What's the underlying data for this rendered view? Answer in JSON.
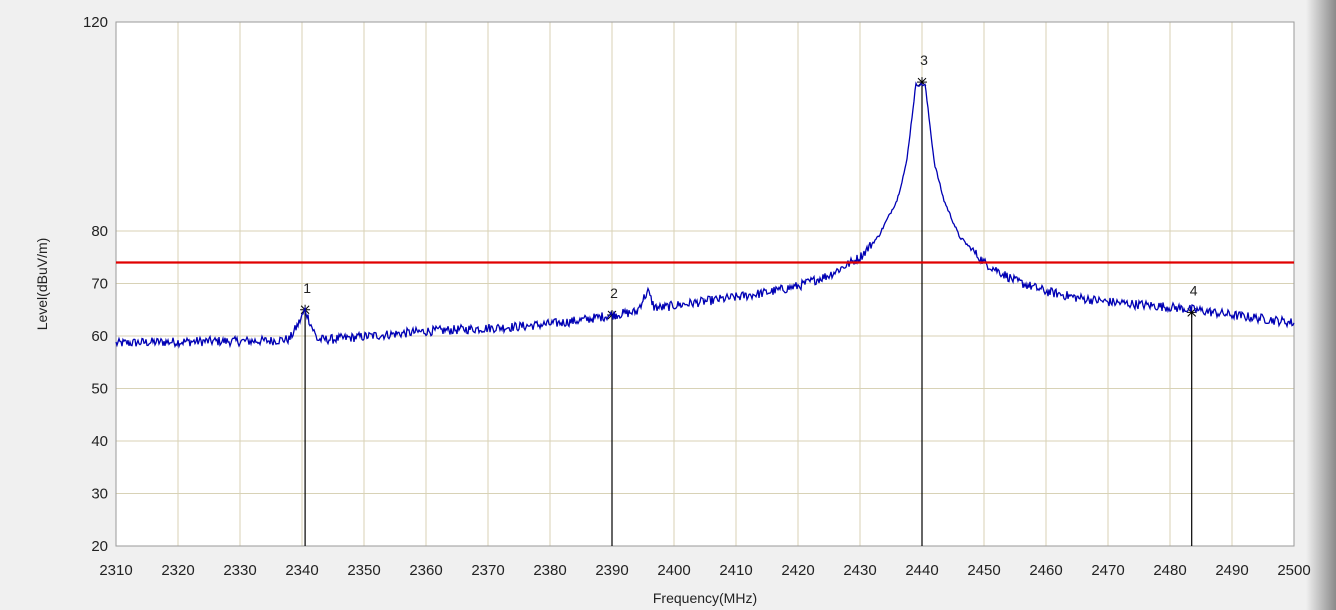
{
  "chart_data": {
    "type": "line",
    "title": "",
    "xlabel": "Frequency(MHz)",
    "ylabel": "Level(dBuV/m)",
    "xlim": [
      2310,
      2500
    ],
    "ylim": [
      20,
      120
    ],
    "grid": true,
    "x_ticks": [
      2310,
      2320,
      2330,
      2340,
      2350,
      2360,
      2370,
      2380,
      2390,
      2400,
      2410,
      2420,
      2430,
      2440,
      2450,
      2460,
      2470,
      2480,
      2490,
      2500
    ],
    "x_tick_labels": [
      "2310",
      "2320",
      "2330",
      "2340",
      "2350",
      "2360",
      "2370",
      "2380",
      "2390",
      "2400",
      "2410",
      "2420",
      "2430",
      "2440",
      "2450",
      "2460",
      "2470",
      "2480",
      "2490",
      "2500"
    ],
    "y_ticks": [
      20,
      30,
      40,
      50,
      60,
      70,
      80,
      120
    ],
    "y_tick_labels": [
      "20",
      "30",
      "40",
      "50",
      "60",
      "70",
      "80",
      "120"
    ],
    "limit_line": {
      "value": 74,
      "color": "#e00000"
    },
    "trace_color": "#0000b4",
    "marker_color": "#000000",
    "grid_color": "#d8d2b6",
    "series": [
      {
        "x": [
          2310,
          2315,
          2320,
          2325,
          2330,
          2335,
          2338,
          2339.5,
          2340.5,
          2341.5,
          2342.5,
          2345,
          2350,
          2355,
          2360,
          2365,
          2370,
          2375,
          2380,
          2385,
          2388,
          2390,
          2392,
          2394,
          2395,
          2395.8,
          2396.8,
          2398,
          2400,
          2405,
          2410,
          2415,
          2420,
          2425,
          2430,
          2433,
          2436,
          2437.5,
          2438.5,
          2439,
          2440.5,
          2441,
          2442,
          2443.5,
          2446,
          2450,
          2455,
          2460,
          2465,
          2470,
          2475,
          2480,
          2484,
          2490,
          2495,
          2500
        ],
        "y": [
          58.6,
          58.8,
          58.9,
          59.0,
          59.0,
          59.1,
          59.4,
          62.5,
          65.0,
          62.0,
          59.3,
          59.4,
          59.9,
          60.4,
          60.9,
          61.2,
          61.5,
          61.8,
          62.3,
          63.0,
          63.6,
          64.0,
          64.3,
          64.6,
          67.0,
          68.5,
          65.5,
          65.4,
          65.8,
          66.6,
          67.4,
          68.3,
          69.5,
          71.6,
          75.0,
          79.0,
          86.0,
          93.0,
          103.0,
          108.0,
          108.0,
          103.0,
          93.0,
          86.0,
          79.0,
          74.0,
          70.5,
          68.5,
          67.3,
          66.5,
          66.0,
          65.5,
          65.0,
          64.0,
          63.3,
          62.5
        ]
      }
    ],
    "markers": [
      {
        "label": "1",
        "x": 2340.5,
        "y": 65.0
      },
      {
        "label": "2",
        "x": 2390.0,
        "y": 64.0
      },
      {
        "label": "3",
        "x": 2440.0,
        "y": 108.5
      },
      {
        "label": "4",
        "x": 2483.5,
        "y": 64.5
      }
    ]
  }
}
